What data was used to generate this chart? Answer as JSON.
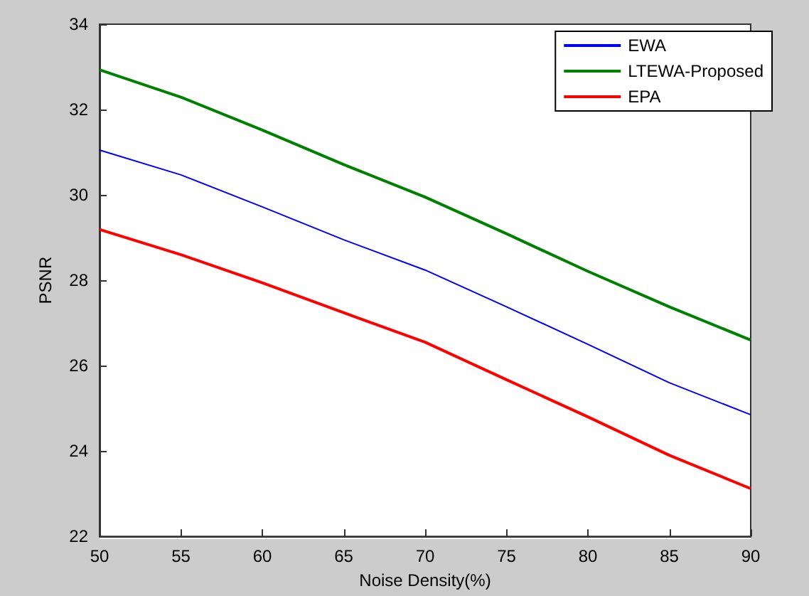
{
  "chart_data": {
    "type": "line",
    "xlabel": "Noise Density(%)",
    "ylabel": "PSNR",
    "x": [
      50,
      55,
      60,
      65,
      70,
      75,
      80,
      85,
      90
    ],
    "series": [
      {
        "name": "EWA",
        "color": "#0000ff",
        "values": [
          31.05,
          30.47,
          29.72,
          28.95,
          28.24,
          27.38,
          26.5,
          25.6,
          24.85
        ]
      },
      {
        "name": "LTEWA-Proposed",
        "color": "#008000",
        "values": [
          32.93,
          32.29,
          31.52,
          30.71,
          29.95,
          29.09,
          28.21,
          27.38,
          26.6
        ]
      },
      {
        "name": "EPA",
        "color": "#ff0000",
        "values": [
          29.19,
          28.6,
          27.94,
          27.24,
          26.55,
          25.67,
          24.8,
          23.9,
          23.12
        ]
      }
    ],
    "xlim": [
      50,
      90
    ],
    "xticks": [
      50,
      55,
      60,
      65,
      70,
      75,
      80,
      85,
      90
    ],
    "ylim": [
      22,
      34
    ],
    "yticks": [
      22,
      24,
      26,
      28,
      30,
      32,
      34
    ],
    "grid": false,
    "legend": "top right",
    "marker": "none",
    "line_style": "solid"
  }
}
